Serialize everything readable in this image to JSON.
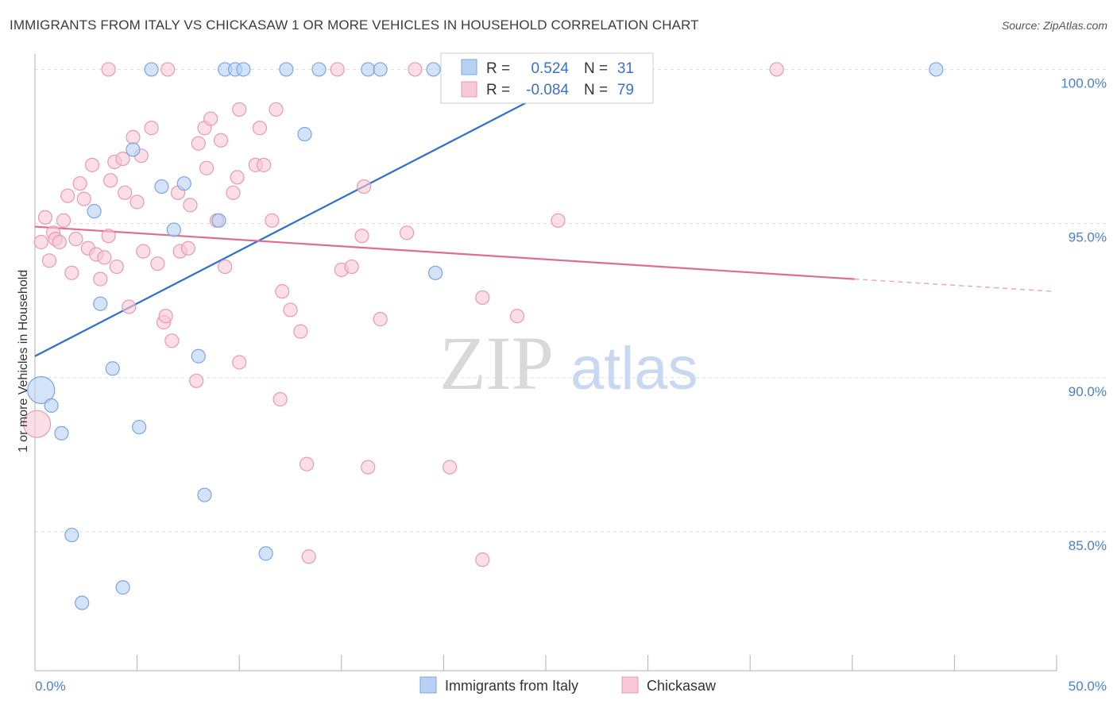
{
  "title": "IMMIGRANTS FROM ITALY VS CHICKASAW 1 OR MORE VEHICLES IN HOUSEHOLD CORRELATION CHART",
  "source": "Source: ZipAtlas.com",
  "watermark": {
    "zip": "ZIP",
    "atlas": "atlas"
  },
  "colors": {
    "italy_fill": "#b8d0f3",
    "italy_stroke": "#7aa6e3",
    "italy_line": "#2f6fcc",
    "chickasaw_fill": "#f8c8d6",
    "chickasaw_stroke": "#e89ab2",
    "chickasaw_line": "#e06c94",
    "tick_label": "#4a7fd1",
    "grid": "#dddddd"
  },
  "legend_top": {
    "rows": [
      {
        "r_label": "R =",
        "r_value": "0.524",
        "n_label": "N =",
        "n_value": "31"
      },
      {
        "r_label": "R =",
        "r_value": "-0.084",
        "n_label": "N =",
        "n_value": "79"
      }
    ]
  },
  "chart_data": {
    "type": "scatter",
    "title": "IMMIGRANTS FROM ITALY VS CHICKASAW 1 OR MORE VEHICLES IN HOUSEHOLD CORRELATION CHART",
    "xlabel": "",
    "ylabel": "1 or more Vehicles in Household",
    "xlim": [
      0,
      50
    ],
    "ylim": [
      80.5,
      100.5
    ],
    "x_tick_labels": [
      {
        "value": 0,
        "label": "0.0%"
      },
      {
        "value": 50,
        "label": "50.0%"
      }
    ],
    "y_tick_labels": [
      {
        "value": 100,
        "label": "100.0%"
      },
      {
        "value": 95,
        "label": "95.0%"
      },
      {
        "value": 90,
        "label": "90.0%"
      },
      {
        "value": 85,
        "label": "85.0%"
      }
    ],
    "grid": "horizontal dashed",
    "legend_position": "bottom",
    "series": [
      {
        "name": "Immigrants from Italy",
        "r": 0.524,
        "n": 31,
        "trend": {
          "x": [
            0,
            27.2
          ],
          "y": [
            90.7,
            100.0
          ]
        },
        "points": [
          {
            "x": 0.3,
            "y": 89.6,
            "big": true
          },
          {
            "x": 0.8,
            "y": 89.1
          },
          {
            "x": 1.3,
            "y": 88.2
          },
          {
            "x": 1.8,
            "y": 84.9
          },
          {
            "x": 2.3,
            "y": 82.7
          },
          {
            "x": 2.9,
            "y": 95.4
          },
          {
            "x": 3.2,
            "y": 92.4
          },
          {
            "x": 3.8,
            "y": 90.3
          },
          {
            "x": 4.3,
            "y": 83.2
          },
          {
            "x": 4.8,
            "y": 97.4
          },
          {
            "x": 5.1,
            "y": 88.4
          },
          {
            "x": 5.7,
            "y": 100.0
          },
          {
            "x": 6.2,
            "y": 96.2
          },
          {
            "x": 6.8,
            "y": 94.8
          },
          {
            "x": 7.3,
            "y": 96.3
          },
          {
            "x": 8.0,
            "y": 90.7
          },
          {
            "x": 8.3,
            "y": 86.2
          },
          {
            "x": 9.0,
            "y": 95.1
          },
          {
            "x": 9.3,
            "y": 100.0
          },
          {
            "x": 9.8,
            "y": 100.0
          },
          {
            "x": 10.2,
            "y": 100.0
          },
          {
            "x": 11.3,
            "y": 84.3
          },
          {
            "x": 12.3,
            "y": 100.0
          },
          {
            "x": 13.2,
            "y": 97.9
          },
          {
            "x": 13.9,
            "y": 100.0
          },
          {
            "x": 16.3,
            "y": 100.0
          },
          {
            "x": 16.9,
            "y": 100.0
          },
          {
            "x": 19.5,
            "y": 100.0
          },
          {
            "x": 19.6,
            "y": 93.4
          },
          {
            "x": 21.2,
            "y": 100.0
          },
          {
            "x": 44.1,
            "y": 100.0
          }
        ]
      },
      {
        "name": "Chickasaw",
        "r": -0.084,
        "n": 79,
        "trend": {
          "x": [
            0,
            40.1
          ],
          "y": [
            94.9,
            93.2
          ]
        },
        "trend_dashed": {
          "x": [
            40.1,
            49.9
          ],
          "y": [
            93.2,
            92.8
          ]
        },
        "points": [
          {
            "x": 0.1,
            "y": 88.5,
            "big": true
          },
          {
            "x": 0.3,
            "y": 94.4
          },
          {
            "x": 0.5,
            "y": 95.2
          },
          {
            "x": 0.7,
            "y": 93.8
          },
          {
            "x": 0.9,
            "y": 94.7
          },
          {
            "x": 1.0,
            "y": 94.5
          },
          {
            "x": 1.2,
            "y": 94.4
          },
          {
            "x": 1.4,
            "y": 95.1
          },
          {
            "x": 1.6,
            "y": 95.9
          },
          {
            "x": 1.8,
            "y": 93.4
          },
          {
            "x": 2.0,
            "y": 94.5
          },
          {
            "x": 2.2,
            "y": 96.3
          },
          {
            "x": 2.4,
            "y": 95.8
          },
          {
            "x": 2.6,
            "y": 94.2
          },
          {
            "x": 2.8,
            "y": 96.9
          },
          {
            "x": 3.0,
            "y": 94.0
          },
          {
            "x": 3.2,
            "y": 93.2
          },
          {
            "x": 3.4,
            "y": 93.9
          },
          {
            "x": 3.6,
            "y": 94.6
          },
          {
            "x": 3.7,
            "y": 96.4
          },
          {
            "x": 3.9,
            "y": 97.0
          },
          {
            "x": 4.0,
            "y": 93.6
          },
          {
            "x": 4.3,
            "y": 97.1
          },
          {
            "x": 4.4,
            "y": 96.0
          },
          {
            "x": 4.6,
            "y": 92.3
          },
          {
            "x": 4.8,
            "y": 97.8
          },
          {
            "x": 5.0,
            "y": 95.7
          },
          {
            "x": 5.2,
            "y": 97.2
          },
          {
            "x": 5.3,
            "y": 94.1
          },
          {
            "x": 5.7,
            "y": 98.1
          },
          {
            "x": 6.0,
            "y": 93.7
          },
          {
            "x": 6.3,
            "y": 91.8
          },
          {
            "x": 6.4,
            "y": 92.0
          },
          {
            "x": 6.5,
            "y": 100.0
          },
          {
            "x": 6.7,
            "y": 91.2
          },
          {
            "x": 7.0,
            "y": 96.0
          },
          {
            "x": 7.1,
            "y": 94.1
          },
          {
            "x": 7.5,
            "y": 94.2
          },
          {
            "x": 7.6,
            "y": 95.6
          },
          {
            "x": 7.9,
            "y": 89.9
          },
          {
            "x": 8.0,
            "y": 97.6
          },
          {
            "x": 8.3,
            "y": 98.1
          },
          {
            "x": 8.4,
            "y": 96.8
          },
          {
            "x": 8.6,
            "y": 98.4
          },
          {
            "x": 8.9,
            "y": 95.1
          },
          {
            "x": 9.1,
            "y": 97.7
          },
          {
            "x": 9.3,
            "y": 93.6
          },
          {
            "x": 9.7,
            "y": 96.0
          },
          {
            "x": 9.9,
            "y": 96.5
          },
          {
            "x": 10.0,
            "y": 90.5
          },
          {
            "x": 10.0,
            "y": 98.7
          },
          {
            "x": 10.8,
            "y": 96.9
          },
          {
            "x": 11.0,
            "y": 98.1
          },
          {
            "x": 11.2,
            "y": 96.9
          },
          {
            "x": 11.6,
            "y": 95.1
          },
          {
            "x": 11.8,
            "y": 98.7
          },
          {
            "x": 12.0,
            "y": 89.3
          },
          {
            "x": 12.1,
            "y": 92.8
          },
          {
            "x": 12.5,
            "y": 92.2
          },
          {
            "x": 13.0,
            "y": 91.5
          },
          {
            "x": 13.3,
            "y": 87.2
          },
          {
            "x": 13.4,
            "y": 84.2
          },
          {
            "x": 14.8,
            "y": 100.0
          },
          {
            "x": 15.0,
            "y": 93.5
          },
          {
            "x": 15.5,
            "y": 93.6
          },
          {
            "x": 16.0,
            "y": 94.6
          },
          {
            "x": 16.1,
            "y": 96.2
          },
          {
            "x": 16.3,
            "y": 87.1
          },
          {
            "x": 16.9,
            "y": 91.9
          },
          {
            "x": 18.2,
            "y": 94.7
          },
          {
            "x": 20.3,
            "y": 87.1
          },
          {
            "x": 21.2,
            "y": 100.0
          },
          {
            "x": 21.9,
            "y": 92.6
          },
          {
            "x": 21.9,
            "y": 84.1
          },
          {
            "x": 23.6,
            "y": 92.0
          },
          {
            "x": 25.6,
            "y": 95.1
          },
          {
            "x": 36.3,
            "y": 100.0
          },
          {
            "x": 18.6,
            "y": 100.0
          },
          {
            "x": 3.6,
            "y": 100.0
          }
        ]
      }
    ]
  },
  "legend_bottom": [
    {
      "label": "Immigrants from Italy"
    },
    {
      "label": "Chickasaw"
    }
  ]
}
